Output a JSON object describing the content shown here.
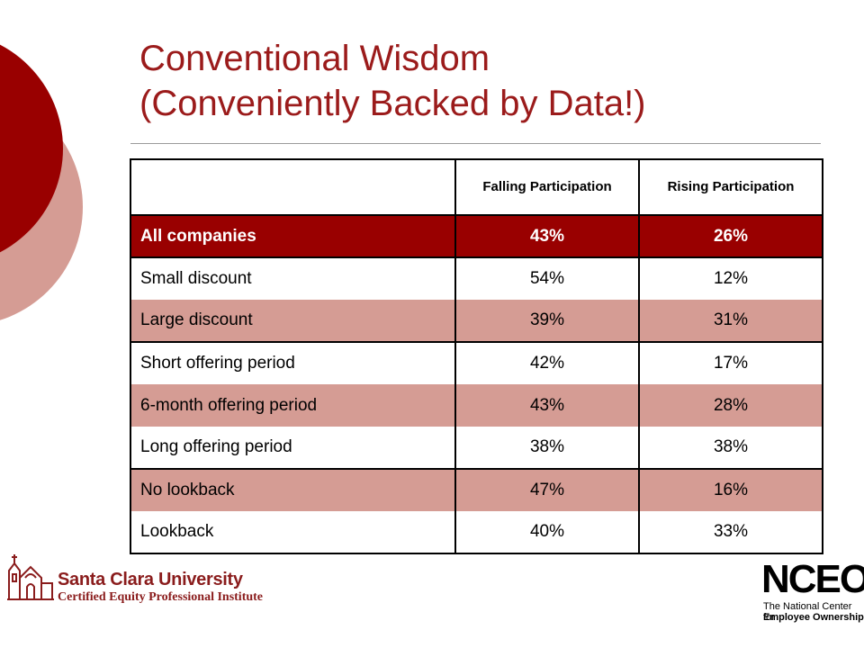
{
  "slide": {
    "title_line1": "Conventional Wisdom",
    "title_line2": "(Conveniently Backed by Data!)"
  },
  "table": {
    "headers": [
      "",
      "Falling Participation",
      "Rising Participation"
    ],
    "rows": [
      {
        "label": "All companies",
        "falling": "43%",
        "rising": "26%"
      },
      {
        "label": "Small discount",
        "falling": "54%",
        "rising": "12%"
      },
      {
        "label": "Large discount",
        "falling": "39%",
        "rising": "31%"
      },
      {
        "label": "Short offering period",
        "falling": "42%",
        "rising": "17%"
      },
      {
        "label": "6-month offering period",
        "falling": "43%",
        "rising": "28%"
      },
      {
        "label": "Long offering period",
        "falling": "38%",
        "rising": "38%"
      },
      {
        "label": "No lookback",
        "falling": "47%",
        "rising": "16%"
      },
      {
        "label": "Lookback",
        "falling": "40%",
        "rising": "33%"
      }
    ]
  },
  "footer": {
    "scu_name": "Santa Clara University",
    "scu_subtitle": "Certified Equity Professional Institute",
    "nceo_mark": "NCEO",
    "nceo_line1": "The National Center for",
    "nceo_line2": "Employee Ownership"
  },
  "colors": {
    "title": "#9b1b1b",
    "accent_row": "#990000",
    "pink_row": "#d59c94",
    "circle_dark": "#990000",
    "circle_light": "#d59c94"
  }
}
